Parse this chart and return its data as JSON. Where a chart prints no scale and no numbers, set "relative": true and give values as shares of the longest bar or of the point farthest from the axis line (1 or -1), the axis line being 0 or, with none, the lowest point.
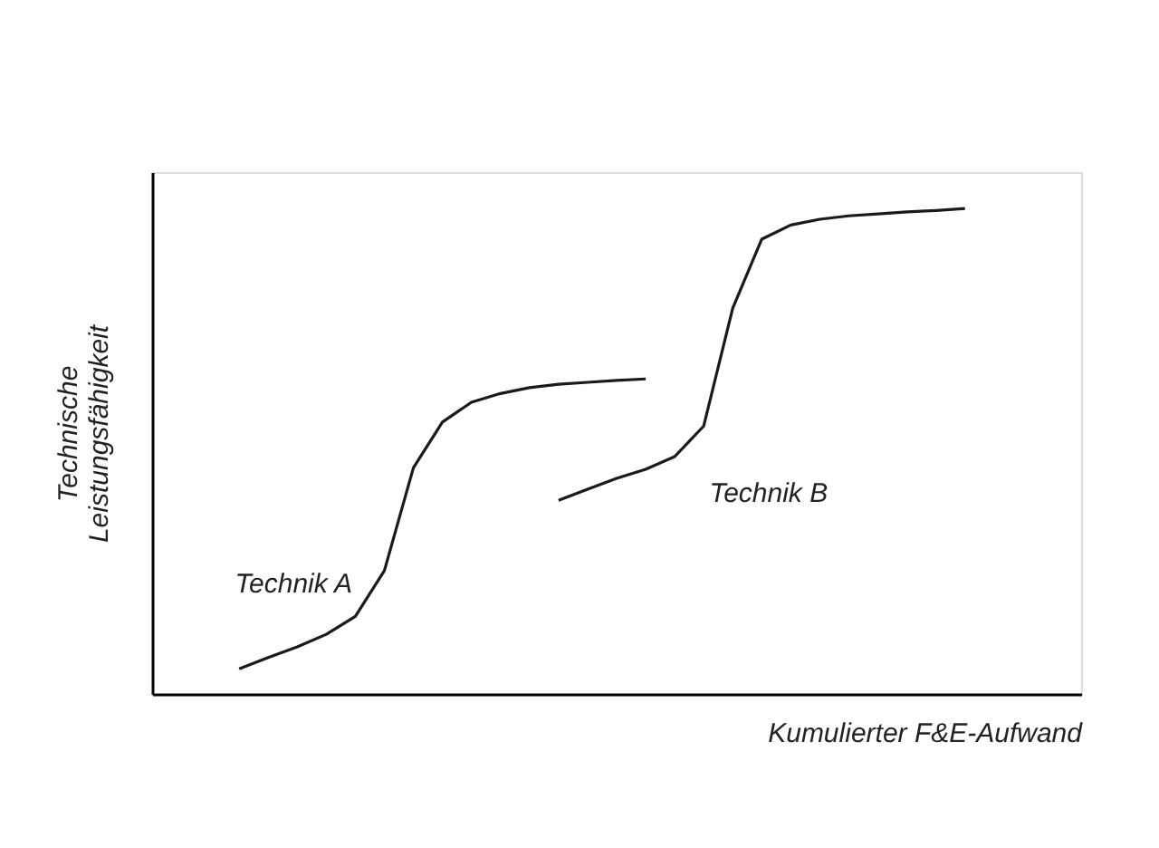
{
  "chart_data": {
    "type": "line",
    "relative": true,
    "xlabel": "Kumulierter F&E-Aufwand",
    "ylabel": "Technische\nLeistungsfähigkeit",
    "grid": false,
    "marker": "none",
    "line_style": "solid",
    "categories": [
      null,
      null,
      null,
      null,
      null,
      null,
      null,
      null,
      null,
      null,
      null,
      null,
      null,
      null,
      null,
      null,
      null,
      null,
      null,
      null,
      null,
      null,
      null,
      null,
      null,
      null,
      null,
      null,
      null,
      null,
      null,
      null,
      null
    ],
    "series": [
      {
        "name": "Technik A",
        "color": "#1a1a1a",
        "values": [
          null,
          null,
          null,
          0.052,
          0.075,
          0.097,
          0.123,
          0.16,
          0.254,
          0.466,
          0.56,
          0.601,
          0.619,
          0.631,
          0.638,
          0.642,
          0.646,
          0.649,
          null,
          null,
          null,
          null,
          null,
          null,
          null,
          null,
          null,
          null,
          null,
          null,
          null,
          null,
          null
        ]
      },
      {
        "name": "Technik B",
        "color": "#1a1a1a",
        "values": [
          null,
          null,
          null,
          null,
          null,
          null,
          null,
          null,
          null,
          null,
          null,
          null,
          null,
          null,
          0.399,
          0.422,
          0.444,
          0.463,
          0.489,
          0.552,
          0.795,
          0.937,
          0.966,
          0.978,
          0.985,
          0.989,
          0.993,
          0.996,
          1,
          null,
          null,
          null,
          null
        ]
      }
    ]
  }
}
